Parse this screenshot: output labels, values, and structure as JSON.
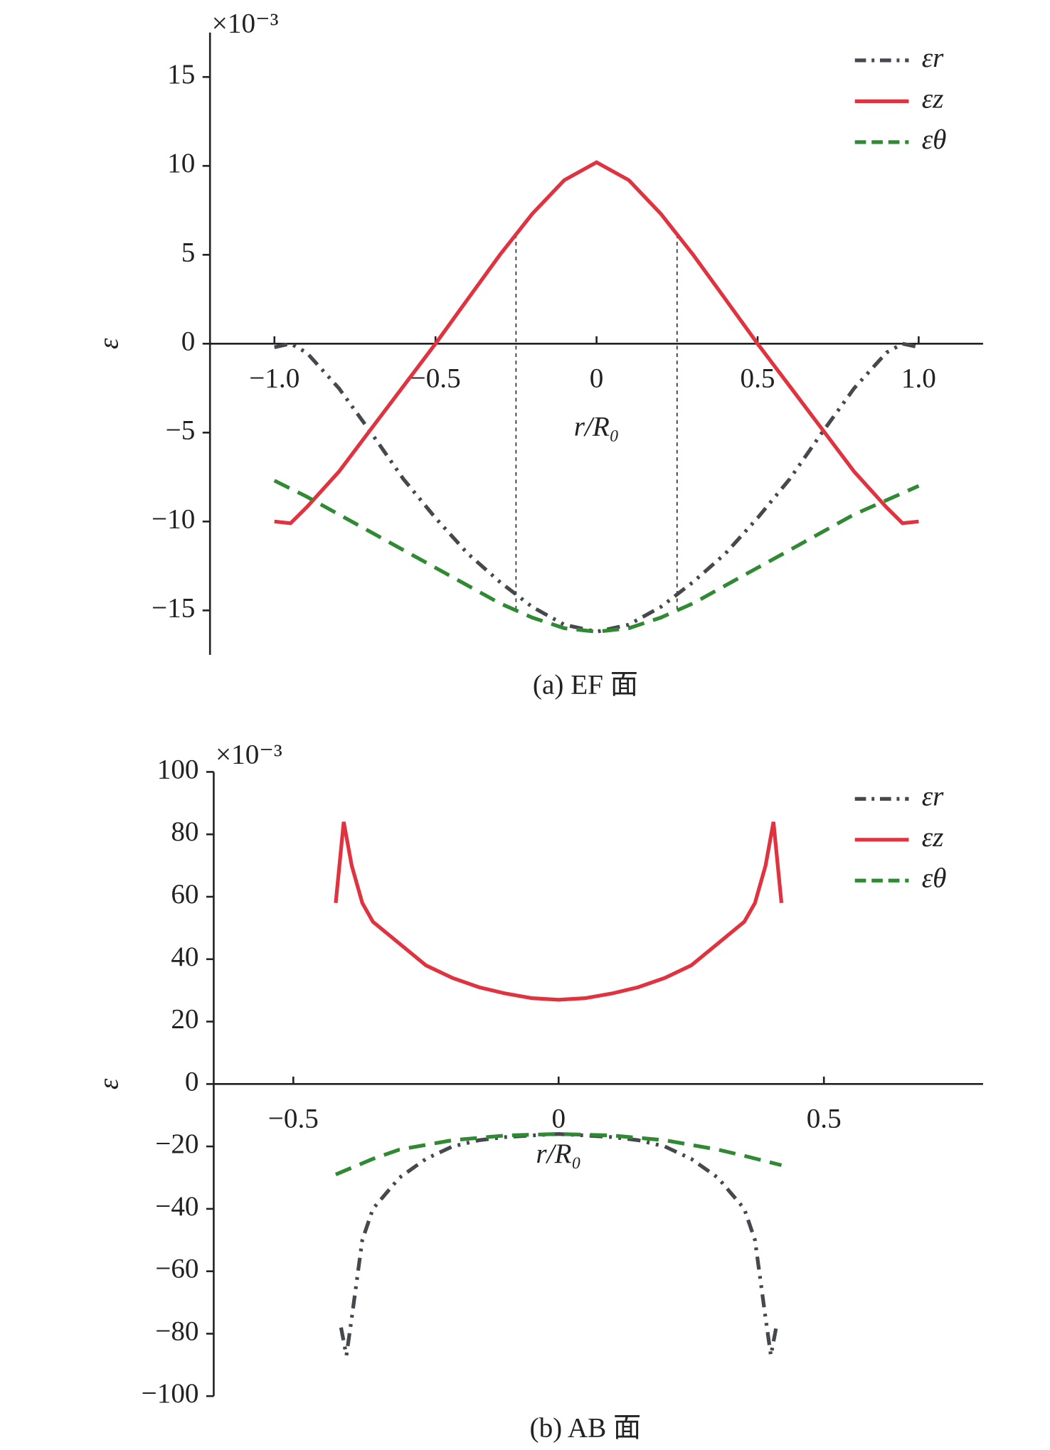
{
  "chart_data": [
    {
      "type": "line",
      "caption": "(a) EF 面",
      "y_multiplier": "×10⁻³",
      "ylabel": "ε",
      "xlabel": "r/R₀",
      "legend": "upper right",
      "xlim": [
        -1.2,
        1.2
      ],
      "ylim": [
        -17.5,
        17.5
      ],
      "xticks": [
        {
          "value": -1,
          "label": "−1.0"
        },
        {
          "value": -0.5,
          "label": "−0.5"
        },
        0,
        0.5,
        {
          "value": 1,
          "label": "1.0"
        }
      ],
      "yticks": [
        {
          "value": -15,
          "label": "−15"
        },
        {
          "value": -10,
          "label": "−10"
        },
        {
          "value": -5,
          "label": "−5"
        },
        0,
        5,
        10,
        15
      ],
      "vlines": [
        -0.25,
        0.25
      ],
      "series": [
        {
          "name": "εr",
          "color": "#45484c",
          "style": "dashdot",
          "x": [
            -1,
            -0.95,
            -0.9,
            -0.8,
            -0.7,
            -0.6,
            -0.5,
            -0.4,
            -0.3,
            -0.2,
            -0.1,
            0,
            0.1,
            0.2,
            0.3,
            0.4,
            0.5,
            0.6,
            0.7,
            0.8,
            0.9,
            0.95,
            1
          ],
          "values": [
            -0.2,
            0,
            -0.5,
            -2.5,
            -5,
            -7.6,
            -9.8,
            -11.8,
            -13.4,
            -14.8,
            -15.8,
            -16.2,
            -15.8,
            -14.8,
            -13.4,
            -11.8,
            -9.8,
            -7.6,
            -5,
            -2.5,
            -0.5,
            0,
            -0.2
          ]
        },
        {
          "name": "εz",
          "color": "#e0323f",
          "style": "solid",
          "x": [
            -1,
            -0.95,
            -0.9,
            -0.8,
            -0.7,
            -0.6,
            -0.5,
            -0.4,
            -0.3,
            -0.2,
            -0.1,
            0,
            0.1,
            0.2,
            0.3,
            0.4,
            0.5,
            0.6,
            0.7,
            0.8,
            0.9,
            0.95,
            1
          ],
          "values": [
            -10,
            -10.1,
            -9.2,
            -7.2,
            -4.8,
            -2.4,
            0,
            2.5,
            5,
            7.3,
            9.2,
            10.2,
            9.2,
            7.3,
            5,
            2.5,
            0,
            -2.4,
            -4.8,
            -7.2,
            -9.2,
            -10.1,
            -10
          ]
        },
        {
          "name": "εθ",
          "color": "#2f8a33",
          "style": "dashed",
          "x": [
            -1,
            -0.9,
            -0.8,
            -0.7,
            -0.6,
            -0.5,
            -0.4,
            -0.3,
            -0.2,
            -0.1,
            0,
            0.1,
            0.2,
            0.3,
            0.4,
            0.5,
            0.6,
            0.7,
            0.8,
            0.9,
            1
          ],
          "values": [
            -7.7,
            -8.6,
            -9.6,
            -10.6,
            -11.6,
            -12.6,
            -13.6,
            -14.6,
            -15.4,
            -16,
            -16.2,
            -16,
            -15.4,
            -14.6,
            -13.6,
            -12.6,
            -11.6,
            -10.6,
            -9.6,
            -8.8,
            -8
          ]
        }
      ]
    },
    {
      "type": "line",
      "caption": "(b) AB 面",
      "y_multiplier": "×10⁻³",
      "ylabel": "ε",
      "xlabel": "r/R₀",
      "legend": "upper right",
      "xlim": [
        -0.65,
        0.8
      ],
      "ylim": [
        -100,
        100
      ],
      "xticks": [
        {
          "value": -0.5,
          "label": "−0.5"
        },
        0,
        0.5
      ],
      "yticks": [
        {
          "value": -100,
          "label": "−100"
        },
        {
          "value": -80,
          "label": "−80"
        },
        {
          "value": -60,
          "label": "−60"
        },
        {
          "value": -40,
          "label": "−40"
        },
        {
          "value": -20,
          "label": "−20"
        },
        0,
        20,
        40,
        60,
        80,
        100
      ],
      "series": [
        {
          "name": "εr",
          "color": "#45484c",
          "style": "dashdot",
          "x": [
            -0.41,
            -0.4,
            -0.39,
            -0.37,
            -0.35,
            -0.3,
            -0.25,
            -0.2,
            -0.15,
            -0.1,
            -0.05,
            0,
            0.05,
            0.1,
            0.15,
            0.2,
            0.25,
            0.3,
            0.35,
            0.37,
            0.39,
            0.4,
            0.41
          ],
          "values": [
            -78,
            -87,
            -75,
            -50,
            -40,
            -30,
            -24,
            -20,
            -18,
            -17,
            -16.5,
            -16,
            -16.5,
            -17,
            -18,
            -20,
            -24,
            -30,
            -40,
            -50,
            -75,
            -87,
            -78
          ]
        },
        {
          "name": "εz",
          "color": "#e0323f",
          "style": "solid",
          "x": [
            -0.42,
            -0.405,
            -0.39,
            -0.37,
            -0.35,
            -0.3,
            -0.25,
            -0.2,
            -0.15,
            -0.1,
            -0.05,
            0,
            0.05,
            0.1,
            0.15,
            0.2,
            0.25,
            0.3,
            0.35,
            0.37,
            0.39,
            0.405,
            0.42
          ],
          "values": [
            58,
            84,
            70,
            58,
            52,
            45,
            38,
            34,
            31,
            29,
            27.5,
            27,
            27.5,
            29,
            31,
            34,
            38,
            45,
            52,
            58,
            70,
            84,
            58
          ]
        },
        {
          "name": "εθ",
          "color": "#2f8a33",
          "style": "dashed",
          "x": [
            -0.42,
            -0.35,
            -0.3,
            -0.2,
            -0.1,
            0,
            0.1,
            0.2,
            0.3,
            0.35,
            0.42
          ],
          "values": [
            -29,
            -24,
            -21,
            -18,
            -16.5,
            -16,
            -16.5,
            -18,
            -21,
            -23,
            -26
          ]
        }
      ]
    }
  ]
}
